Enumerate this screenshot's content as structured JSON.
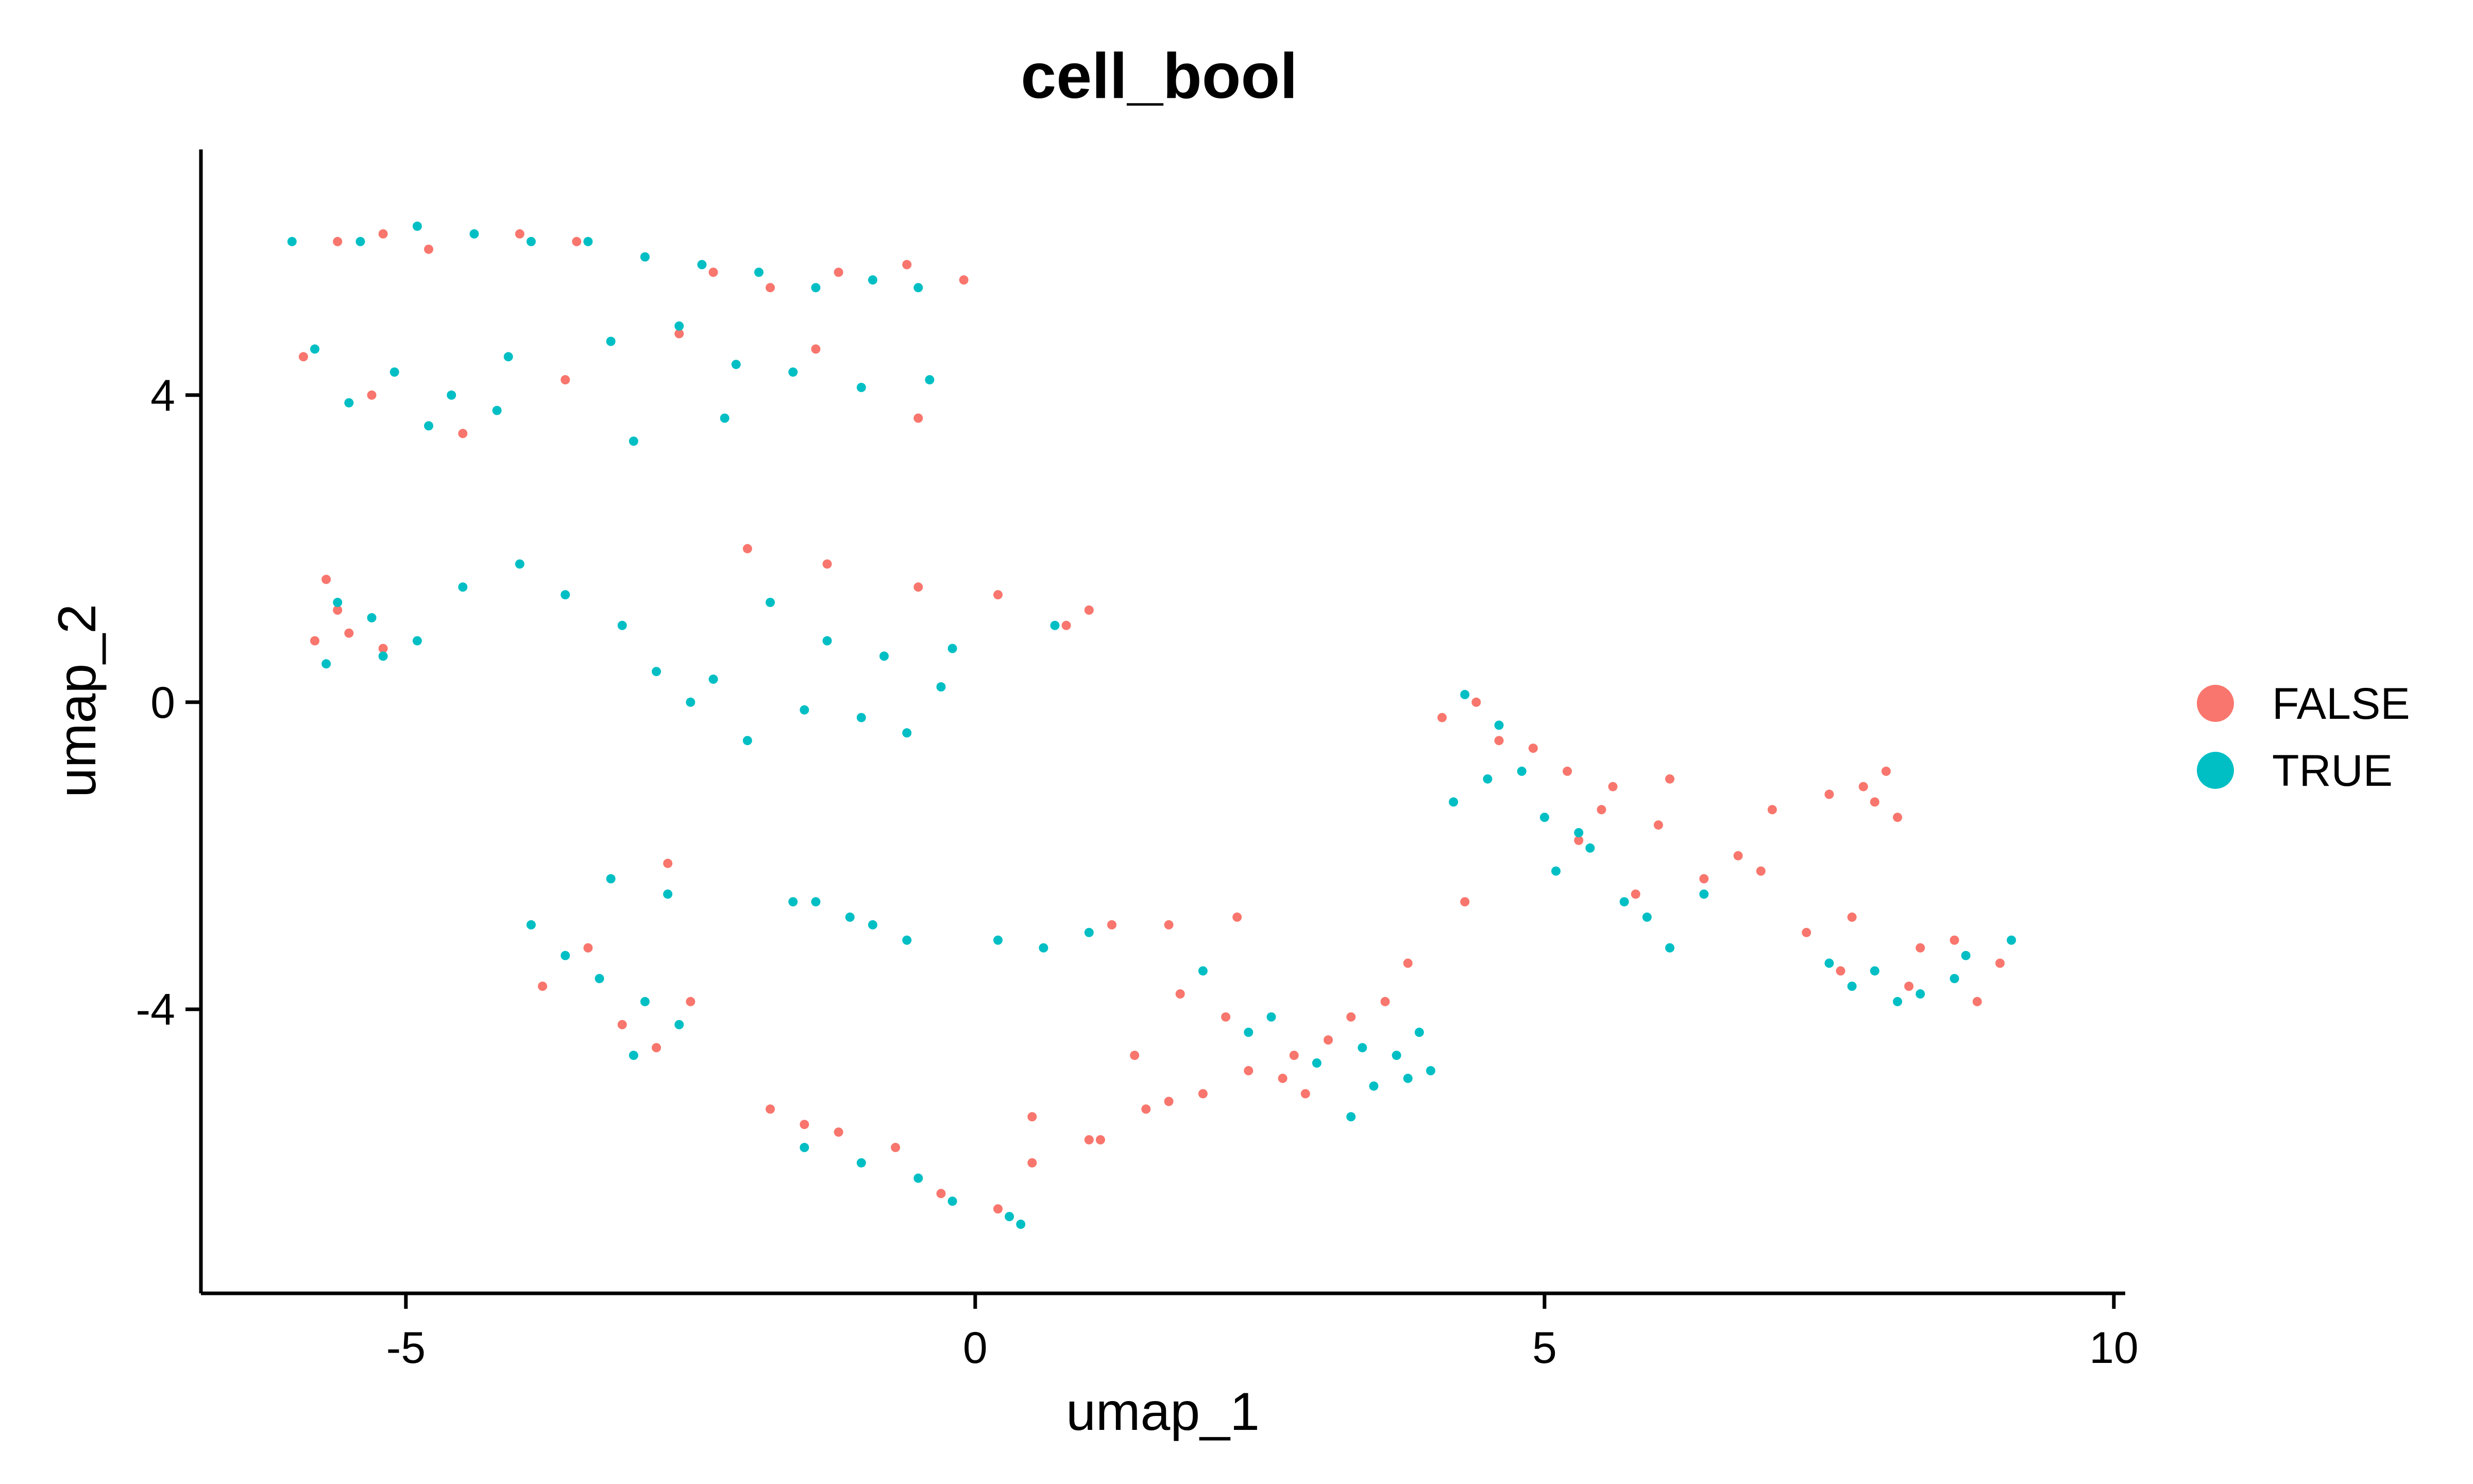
{
  "chart_data": {
    "type": "scatter",
    "title": "cell_bool",
    "xlabel": "umap_1",
    "ylabel": "umap_2",
    "xlim": [
      -6.8,
      10.1
    ],
    "ylim": [
      -7.7,
      7.2
    ],
    "x_ticks": [
      -5,
      0,
      5,
      10
    ],
    "x_tick_labels": [
      "-5",
      "0",
      "5",
      "10"
    ],
    "y_ticks": [
      -4,
      0,
      4
    ],
    "y_tick_labels": [
      "-4",
      "0",
      "4"
    ],
    "grid": false,
    "legend_position": "right",
    "series": [
      {
        "name": "FALSE",
        "color": "#F8766D",
        "x": [
          -5.6,
          -5.2,
          -4.8,
          -4.0,
          -3.5,
          -2.9,
          -2.3,
          -1.8,
          -1.2,
          -0.6,
          -0.1,
          -5.9,
          -5.3,
          -4.5,
          -3.6,
          -2.6,
          -1.4,
          -0.5,
          -5.7,
          -5.5,
          -5.2,
          -5.8,
          -5.6,
          -2.0,
          -1.3,
          -0.5,
          0.2,
          0.8,
          1.0,
          -2.7,
          -3.4,
          -3.8,
          -3.1,
          -2.8,
          -2.5,
          -1.8,
          -1.5,
          -1.2,
          -0.7,
          -0.3,
          0.2,
          0.5,
          1.0,
          1.5,
          2.0,
          2.4,
          1.2,
          1.7,
          2.3,
          2.8,
          3.1,
          2.7,
          2.9,
          3.3,
          3.6,
          1.8,
          2.2,
          4.1,
          4.4,
          4.9,
          5.2,
          5.6,
          6.0,
          6.4,
          6.7,
          5.8,
          6.1,
          5.3,
          5.5,
          6.9,
          4.6,
          7.0,
          7.5,
          7.8,
          8.0,
          8.1,
          7.9,
          7.6,
          8.3,
          8.6,
          9.0,
          8.8,
          7.7,
          8.2,
          7.3,
          0.5,
          1.1,
          1.4,
          1.7,
          3.8,
          4.3
        ],
        "y": [
          6.0,
          6.1,
          5.9,
          6.1,
          6.0,
          5.8,
          5.6,
          5.4,
          5.6,
          5.7,
          5.5,
          4.5,
          4.0,
          3.5,
          4.2,
          4.8,
          4.6,
          3.7,
          1.6,
          0.9,
          0.7,
          0.8,
          1.2,
          2.0,
          1.8,
          1.5,
          1.4,
          1.0,
          1.2,
          -2.1,
          -3.2,
          -3.7,
          -4.2,
          -4.5,
          -3.9,
          -5.3,
          -5.5,
          -5.6,
          -5.8,
          -6.4,
          -6.6,
          -6.0,
          -5.7,
          -5.3,
          -5.1,
          -4.8,
          -2.9,
          -2.9,
          -2.8,
          -4.6,
          -4.4,
          -4.9,
          -5.1,
          -4.1,
          -3.9,
          -3.8,
          -4.1,
          -0.2,
          0.0,
          -0.6,
          -0.9,
          -1.1,
          -1.6,
          -2.3,
          -2.0,
          -2.5,
          -1.0,
          -1.8,
          -1.4,
          -2.2,
          -0.5,
          -1.4,
          -1.2,
          -1.1,
          -0.9,
          -1.5,
          -1.3,
          -3.5,
          -3.2,
          -3.1,
          -3.4,
          -3.9,
          -2.8,
          -3.7,
          -3.0,
          -5.4,
          -5.7,
          -4.6,
          -5.2,
          -3.4,
          -2.6
        ]
      },
      {
        "name": "TRUE",
        "color": "#00BFC4",
        "x": [
          -6.0,
          -5.4,
          -4.9,
          -4.4,
          -3.9,
          -3.4,
          -2.9,
          -2.4,
          -1.9,
          -1.4,
          -0.9,
          -0.5,
          -5.8,
          -5.1,
          -4.6,
          -4.1,
          -3.2,
          -2.6,
          -2.1,
          -1.6,
          -1.0,
          -0.4,
          -5.5,
          -4.8,
          -4.2,
          -3.0,
          -2.2,
          -5.6,
          -5.3,
          -4.9,
          -4.5,
          -4.0,
          -5.7,
          -5.2,
          -3.6,
          -3.1,
          -2.8,
          -2.3,
          -1.8,
          -1.3,
          -0.8,
          -0.2,
          -2.5,
          -2.0,
          -1.5,
          -1.0,
          -0.6,
          -0.3,
          -3.2,
          -1.1,
          -1.6,
          -3.9,
          -3.6,
          -3.3,
          -2.9,
          -2.6,
          -3.0,
          -2.7,
          -1.5,
          -1.0,
          -0.5,
          -0.2,
          0.3,
          0.4,
          -1.4,
          -0.9,
          -0.6,
          0.2,
          0.6,
          1.0,
          2.0,
          2.6,
          3.0,
          3.3,
          3.5,
          3.8,
          3.9,
          2.4,
          3.4,
          4.0,
          4.3,
          4.6,
          5.0,
          5.3,
          5.7,
          6.1,
          4.2,
          4.8,
          5.4,
          5.9,
          6.4,
          4.5,
          5.1,
          7.5,
          7.9,
          8.3,
          8.7,
          9.1,
          7.7,
          8.1,
          8.6,
          3.7,
          0.7
        ],
        "y": [
          6.0,
          6.0,
          6.2,
          6.1,
          6.0,
          6.0,
          5.8,
          5.7,
          5.6,
          5.4,
          5.5,
          5.4,
          4.6,
          4.3,
          4.0,
          4.5,
          4.7,
          4.9,
          4.4,
          4.3,
          4.1,
          4.2,
          3.9,
          3.6,
          3.8,
          3.4,
          3.7,
          1.3,
          1.1,
          0.8,
          1.5,
          1.8,
          0.5,
          0.6,
          1.4,
          1.0,
          0.4,
          0.3,
          1.3,
          0.8,
          0.6,
          0.7,
          0.0,
          -0.5,
          -0.1,
          -0.2,
          -0.4,
          0.2,
          -2.3,
          -2.8,
          -2.6,
          -2.9,
          -3.3,
          -3.6,
          -3.9,
          -4.2,
          -4.6,
          -2.5,
          -5.8,
          -6.0,
          -6.2,
          -6.5,
          -6.7,
          -6.8,
          -2.6,
          -2.9,
          -3.1,
          -3.1,
          -3.2,
          -3.0,
          -3.5,
          -4.1,
          -4.7,
          -5.4,
          -5.0,
          -4.9,
          -4.3,
          -4.3,
          -4.5,
          -4.8,
          0.1,
          -0.3,
          -1.5,
          -1.7,
          -2.6,
          -3.2,
          -1.3,
          -0.9,
          -1.9,
          -2.8,
          -2.5,
          -1.0,
          -2.2,
          -3.4,
          -3.5,
          -3.8,
          -3.3,
          -3.1,
          -3.7,
          -3.9,
          -3.6,
          -4.6,
          1.0
        ]
      }
    ]
  }
}
